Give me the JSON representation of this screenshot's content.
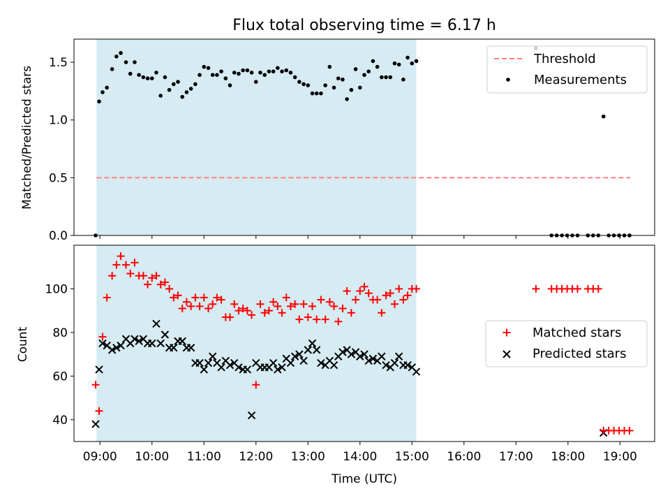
{
  "chart_data": [
    {
      "type": "scatter",
      "title": "Flux total observing time = 6.17 h",
      "xlabel": "",
      "ylabel": "Matched/Predicted stars",
      "xlim": [
        "08:30",
        "19:40"
      ],
      "ylim": [
        0,
        1.7
      ],
      "yticks": [
        0.0,
        0.5,
        1.0,
        1.5
      ],
      "ytick_labels": [
        "0.0",
        "0.5",
        "1.0",
        "1.5"
      ],
      "shaded_interval": [
        "08:56",
        "15:05"
      ],
      "legend_position": "top-right",
      "threshold": {
        "name": "Threshold",
        "value": 0.5,
        "x_range": [
          "08:56",
          "19:12"
        ],
        "color": "#ff7f7f"
      },
      "series": [
        {
          "name": "Measurements",
          "color": "#000000",
          "marker": "dot",
          "x": [
            "08:55",
            "08:59",
            "09:03",
            "09:08",
            "09:14",
            "09:19",
            "09:24",
            "09:30",
            "09:35",
            "09:40",
            "09:45",
            "09:50",
            "09:55",
            "10:00",
            "10:05",
            "10:10",
            "10:15",
            "10:20",
            "10:25",
            "10:30",
            "10:35",
            "10:40",
            "10:45",
            "10:50",
            "10:55",
            "11:00",
            "11:05",
            "11:10",
            "11:15",
            "11:20",
            "11:25",
            "11:30",
            "11:35",
            "11:40",
            "11:45",
            "11:50",
            "11:55",
            "12:00",
            "12:05",
            "12:10",
            "12:15",
            "12:20",
            "12:25",
            "12:30",
            "12:35",
            "12:40",
            "12:45",
            "12:50",
            "12:55",
            "13:00",
            "13:05",
            "13:10",
            "13:15",
            "13:20",
            "13:25",
            "13:30",
            "13:35",
            "13:40",
            "13:45",
            "13:50",
            "13:55",
            "14:00",
            "14:05",
            "14:10",
            "14:15",
            "14:20",
            "14:25",
            "14:30",
            "14:35",
            "14:40",
            "14:45",
            "14:50",
            "14:55",
            "15:00",
            "15:05",
            "17:23",
            "17:41",
            "17:47",
            "17:53",
            "17:59",
            "18:05",
            "18:11",
            "18:23",
            "18:29",
            "18:35",
            "18:41",
            "18:47",
            "18:53",
            "18:59",
            "19:05",
            "19:11"
          ],
          "y": [
            0.0,
            1.16,
            1.24,
            1.28,
            1.44,
            1.55,
            1.58,
            1.5,
            1.4,
            1.5,
            1.39,
            1.37,
            1.36,
            1.36,
            1.41,
            1.21,
            1.37,
            1.26,
            1.31,
            1.33,
            1.2,
            1.24,
            1.27,
            1.31,
            1.39,
            1.46,
            1.45,
            1.39,
            1.39,
            1.42,
            1.36,
            1.3,
            1.41,
            1.4,
            1.43,
            1.43,
            1.41,
            1.33,
            1.41,
            1.39,
            1.42,
            1.42,
            1.45,
            1.42,
            1.43,
            1.41,
            1.37,
            1.33,
            1.31,
            1.3,
            1.23,
            1.23,
            1.23,
            1.3,
            1.46,
            1.28,
            1.36,
            1.35,
            1.18,
            1.26,
            1.44,
            1.28,
            1.39,
            1.42,
            1.51,
            1.46,
            1.37,
            1.37,
            1.37,
            1.49,
            1.48,
            1.35,
            1.54,
            1.49,
            1.51,
            1.62,
            0.0,
            0.0,
            0.0,
            0.0,
            0.0,
            0.0,
            0.0,
            0.0,
            0.0,
            1.03,
            0.0,
            0.0,
            0.0,
            0.0,
            0.0
          ]
        }
      ]
    },
    {
      "type": "scatter",
      "title": "",
      "xlabel": "Time (UTC)",
      "ylabel": "Count",
      "xlim": [
        "08:30",
        "19:40"
      ],
      "ylim": [
        30,
        120
      ],
      "yticks": [
        40,
        60,
        80,
        100
      ],
      "ytick_labels": [
        "40",
        "60",
        "80",
        "100"
      ],
      "xtick_labels": [
        "09:00",
        "10:00",
        "11:00",
        "12:00",
        "13:00",
        "14:00",
        "15:00",
        "16:00",
        "17:00",
        "18:00",
        "19:00"
      ],
      "shaded_interval": [
        "08:56",
        "15:05"
      ],
      "legend_position": "center-right",
      "series": [
        {
          "name": "Matched stars",
          "color": "#ff0000",
          "marker": "plus",
          "x": [
            "08:55",
            "08:59",
            "09:03",
            "09:08",
            "09:14",
            "09:19",
            "09:24",
            "09:30",
            "09:35",
            "09:40",
            "09:45",
            "09:50",
            "09:55",
            "10:00",
            "10:05",
            "10:10",
            "10:15",
            "10:20",
            "10:25",
            "10:30",
            "10:35",
            "10:40",
            "10:45",
            "10:50",
            "10:55",
            "11:00",
            "11:05",
            "11:10",
            "11:15",
            "11:20",
            "11:25",
            "11:30",
            "11:35",
            "11:40",
            "11:45",
            "11:50",
            "11:55",
            "12:00",
            "12:05",
            "12:10",
            "12:15",
            "12:20",
            "12:25",
            "12:30",
            "12:35",
            "12:40",
            "12:45",
            "12:50",
            "12:55",
            "13:00",
            "13:05",
            "13:10",
            "13:15",
            "13:20",
            "13:25",
            "13:30",
            "13:35",
            "13:40",
            "13:45",
            "13:50",
            "13:55",
            "14:00",
            "14:05",
            "14:10",
            "14:15",
            "14:20",
            "14:25",
            "14:30",
            "14:35",
            "14:40",
            "14:45",
            "14:50",
            "14:55",
            "15:00",
            "15:05",
            "17:23",
            "17:41",
            "17:47",
            "17:53",
            "17:59",
            "18:05",
            "18:11",
            "18:23",
            "18:29",
            "18:35",
            "18:41",
            "18:47",
            "18:53",
            "18:59",
            "19:05",
            "19:11"
          ],
          "y": [
            56,
            44,
            78,
            96,
            106,
            111,
            115,
            111,
            107,
            112,
            106,
            106,
            102,
            105,
            106,
            102,
            103,
            100,
            96,
            97,
            91,
            94,
            92,
            96,
            92,
            96,
            91,
            93,
            96,
            95,
            87,
            87,
            93,
            90,
            91,
            90,
            88,
            56,
            93,
            89,
            90,
            94,
            92,
            89,
            96,
            92,
            93,
            86,
            93,
            87,
            92,
            86,
            95,
            86,
            94,
            92,
            85,
            91,
            99,
            89,
            95,
            99,
            101,
            98,
            95,
            95,
            89,
            97,
            98,
            93,
            100,
            95,
            97,
            100,
            100,
            100,
            100,
            100,
            100,
            100,
            100,
            100,
            100,
            100,
            100,
            35,
            35,
            35,
            35,
            35,
            35
          ]
        },
        {
          "name": "Predicted stars",
          "color": "#000000",
          "marker": "x",
          "x": [
            "08:55",
            "08:59",
            "09:03",
            "09:08",
            "09:14",
            "09:19",
            "09:24",
            "09:30",
            "09:35",
            "09:40",
            "09:45",
            "09:50",
            "09:55",
            "10:00",
            "10:05",
            "10:10",
            "10:15",
            "10:20",
            "10:25",
            "10:30",
            "10:35",
            "10:40",
            "10:45",
            "10:50",
            "10:55",
            "11:00",
            "11:05",
            "11:10",
            "11:15",
            "11:20",
            "11:25",
            "11:30",
            "11:35",
            "11:40",
            "11:45",
            "11:50",
            "11:55",
            "12:00",
            "12:05",
            "12:10",
            "12:15",
            "12:20",
            "12:25",
            "12:30",
            "12:35",
            "12:40",
            "12:45",
            "12:50",
            "12:55",
            "13:00",
            "13:05",
            "13:10",
            "13:15",
            "13:20",
            "13:25",
            "13:30",
            "13:35",
            "13:40",
            "13:45",
            "13:50",
            "13:55",
            "14:00",
            "14:05",
            "14:10",
            "14:15",
            "14:20",
            "14:25",
            "14:30",
            "14:35",
            "14:40",
            "14:45",
            "14:50",
            "14:55",
            "15:00",
            "15:05",
            "18:41"
          ],
          "y": [
            38,
            63,
            75,
            74,
            72,
            73,
            74,
            77,
            75,
            77,
            76,
            77,
            75,
            75,
            84,
            75,
            79,
            73,
            73,
            76,
            76,
            73,
            73,
            66,
            66,
            63,
            66,
            69,
            66,
            64,
            67,
            65,
            66,
            64,
            63,
            63,
            42,
            66,
            64,
            64,
            64,
            66,
            63,
            64,
            68,
            66,
            69,
            70,
            67,
            72,
            75,
            72,
            66,
            65,
            67,
            65,
            69,
            71,
            72,
            70,
            71,
            69,
            70,
            67,
            68,
            67,
            69,
            65,
            64,
            66,
            69,
            65,
            65,
            64,
            62,
            34
          ]
        }
      ]
    }
  ]
}
